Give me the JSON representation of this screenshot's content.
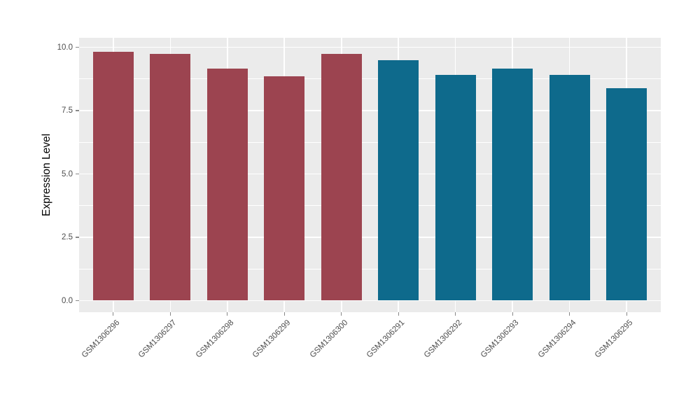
{
  "chart_data": {
    "type": "bar",
    "title": "",
    "xlabel": "",
    "ylabel": "Expression Level",
    "categories": [
      "GSM1306296",
      "GSM1306297",
      "GSM1306298",
      "GSM1306299",
      "GSM1306300",
      "GSM1306291",
      "GSM1306292",
      "GSM1306293",
      "GSM1306294",
      "GSM1306295"
    ],
    "values": [
      9.83,
      9.73,
      9.17,
      8.85,
      9.75,
      9.48,
      8.91,
      9.15,
      8.9,
      8.38
    ],
    "bar_colors": [
      "#9C4450",
      "#9C4450",
      "#9C4450",
      "#9C4450",
      "#9C4450",
      "#0E6A8C",
      "#0E6A8C",
      "#0E6A8C",
      "#0E6A8C",
      "#0E6A8C"
    ],
    "group_colors": {
      "first_five": "#9C4450",
      "last_five": "#0E6A8C"
    },
    "yticks": {
      "values": [
        0,
        2.5,
        5,
        7.5,
        10
      ],
      "labels": [
        "0.0",
        "2.5",
        "5.0",
        "7.5",
        "10.0"
      ]
    },
    "minor_yticks": [
      1.25,
      3.75,
      6.25,
      8.75
    ],
    "ylim": [
      -0.45,
      10.37
    ],
    "grid": true,
    "legend_position": "none",
    "panel_background": "#EBEBEB",
    "grid_color": "#FFFFFF",
    "tick_mark_color": "#888888",
    "axis_text_color": "#4D4D4D",
    "axis_title_color": "#000000"
  }
}
